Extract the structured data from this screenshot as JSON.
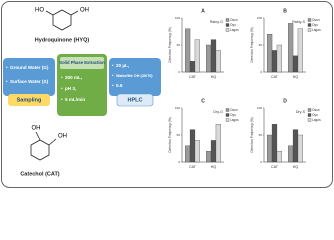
{
  "molecules": [
    {
      "label": "Hydroquinone (HYQ)",
      "groups": [
        "HO",
        "OH"
      ]
    },
    {
      "label": "Catechol (CAT)",
      "groups": [
        "OH",
        "OH"
      ]
    }
  ],
  "steps": [
    {
      "title": "Sampling",
      "items": [
        "Ground Water (G)",
        "Surface Water (S)"
      ]
    },
    {
      "title": "Solid Phase Extraction",
      "items": [
        "200 mL,",
        "pH 3,",
        "5 mL/min"
      ]
    },
    {
      "title": "HPLC",
      "items": [
        "20 µL,",
        "Water/Me OH (30/70)",
        "0.5"
      ]
    }
  ],
  "chart_data": [
    {
      "type": "bar",
      "title": "A",
      "subtitle": "Rainy-G",
      "y_label": "Detection Frequency (%)",
      "categories": [
        "CAT",
        "HQ"
      ],
      "series": [
        {
          "name": "Osun",
          "color": "#9a9a9a",
          "values": [
            80,
            50
          ]
        },
        {
          "name": "Oyo",
          "color": "#555555",
          "values": [
            20,
            60
          ]
        },
        {
          "name": "Lagos",
          "color": "#d9d9d9",
          "values": [
            60,
            40
          ]
        }
      ],
      "ylim": [
        0,
        100
      ],
      "yticks": [
        0,
        50,
        100
      ]
    },
    {
      "type": "bar",
      "title": "B",
      "subtitle": "Rainy-S",
      "y_label": "Detection Frequency (%)",
      "categories": [
        "CAT",
        "HQ"
      ],
      "series": [
        {
          "name": "Osun",
          "color": "#9a9a9a",
          "values": [
            70,
            90
          ]
        },
        {
          "name": "Oyo",
          "color": "#555555",
          "values": [
            40,
            30
          ]
        },
        {
          "name": "Lagos",
          "color": "#d9d9d9",
          "values": [
            50,
            80
          ]
        }
      ],
      "ylim": [
        0,
        100
      ],
      "yticks": [
        0,
        50,
        100
      ]
    },
    {
      "type": "bar",
      "title": "C",
      "subtitle": "Dry-G",
      "y_label": "Detection Frequency (%)",
      "categories": [
        "CAT",
        "HQ"
      ],
      "series": [
        {
          "name": "Osun",
          "color": "#9a9a9a",
          "values": [
            30,
            20
          ]
        },
        {
          "name": "Oyo",
          "color": "#555555",
          "values": [
            60,
            40
          ]
        },
        {
          "name": "Lagos",
          "color": "#d9d9d9",
          "values": [
            40,
            70
          ]
        }
      ],
      "ylim": [
        0,
        100
      ],
      "yticks": [
        0,
        50,
        100
      ]
    },
    {
      "type": "bar",
      "title": "D",
      "subtitle": "Dry-S",
      "y_label": "Detection Frequency (%)",
      "categories": [
        "CAT",
        "HQ"
      ],
      "series": [
        {
          "name": "Osun",
          "color": "#9a9a9a",
          "values": [
            50,
            30
          ]
        },
        {
          "name": "Oyo",
          "color": "#555555",
          "values": [
            70,
            60
          ]
        },
        {
          "name": "Lagos",
          "color": "#d9d9d9",
          "values": [
            20,
            50
          ]
        }
      ],
      "ylim": [
        0,
        100
      ],
      "yticks": [
        0,
        50,
        100
      ]
    }
  ]
}
